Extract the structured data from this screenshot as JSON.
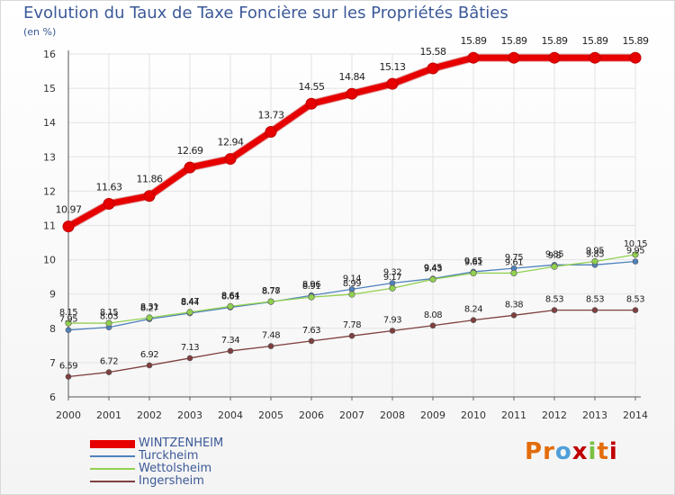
{
  "title": "Evolution du Taux de Taxe Foncière sur les Propriétés Bâties",
  "ylabel": "(en %)",
  "logo": {
    "text": "Proxiti",
    "colors": [
      "#e36c0a",
      "#e36c0a",
      "#4f9fd9",
      "#c00000",
      "#7ac143",
      "#e36c0a",
      "#c00000"
    ]
  },
  "chart_data": {
    "type": "line",
    "x": [
      2000,
      2001,
      2002,
      2003,
      2004,
      2005,
      2006,
      2007,
      2008,
      2009,
      2010,
      2011,
      2012,
      2013,
      2014
    ],
    "ylim": [
      6,
      16
    ],
    "yticks": [
      6,
      7,
      8,
      9,
      10,
      11,
      12,
      13,
      14,
      15,
      16
    ],
    "grid": true,
    "legend_position": "bottom-left",
    "series": [
      {
        "name": "WINTZENHEIM",
        "color": "#e60000",
        "values": [
          10.97,
          11.63,
          11.86,
          12.69,
          12.94,
          13.73,
          14.55,
          14.84,
          15.13,
          15.58,
          15.89,
          15.89,
          15.89,
          15.89,
          15.89
        ],
        "labels": [
          "10.97",
          "11.63",
          "11.86",
          "12.69",
          "12.94",
          "13.73",
          "14.55",
          "14.84",
          "15.13",
          "15.58",
          "15.89",
          "15.89",
          "15.89",
          "15.89",
          "15.89"
        ]
      },
      {
        "name": "Turckheim",
        "color": "#4f81bd",
        "values": [
          7.95,
          8.03,
          8.27,
          8.44,
          8.61,
          8.77,
          8.96,
          9.14,
          9.32,
          9.45,
          9.65,
          9.75,
          9.85,
          9.85,
          9.95
        ],
        "labels": [
          "7.95",
          "8.03",
          "8.27",
          "8.44",
          "8.61",
          "8.77",
          "8.96",
          "9.14",
          "9.32",
          "9.45",
          "9.65",
          "9.75",
          "9.85",
          "9.85",
          "9.95"
        ]
      },
      {
        "name": "Wettolsheim",
        "color": "#92d050",
        "values": [
          8.15,
          8.15,
          8.31,
          8.47,
          8.64,
          8.78,
          8.91,
          8.99,
          9.17,
          9.43,
          9.61,
          9.61,
          9.8,
          9.95,
          10.15
        ],
        "labels": [
          "8.15",
          "8.15",
          "8.31",
          "8.47",
          "8.64",
          "8.78",
          "8.91",
          "8.99",
          "9.17",
          "9.43",
          "9.61",
          "9.61",
          "9.8",
          "9.95",
          "10.15"
        ]
      },
      {
        "name": "Ingersheim",
        "color": "#7f3f3f",
        "values": [
          6.59,
          6.72,
          6.92,
          7.13,
          7.34,
          7.48,
          7.63,
          7.78,
          7.93,
          8.08,
          8.24,
          8.38,
          8.53,
          8.53,
          8.53
        ],
        "labels": [
          "6.59",
          "6.72",
          "6.92",
          "7.13",
          "7.34",
          "7.48",
          "7.63",
          "7.78",
          "7.93",
          "8.08",
          "8.24",
          "8.38",
          "8.53",
          "8.53",
          "8.53"
        ]
      }
    ]
  }
}
